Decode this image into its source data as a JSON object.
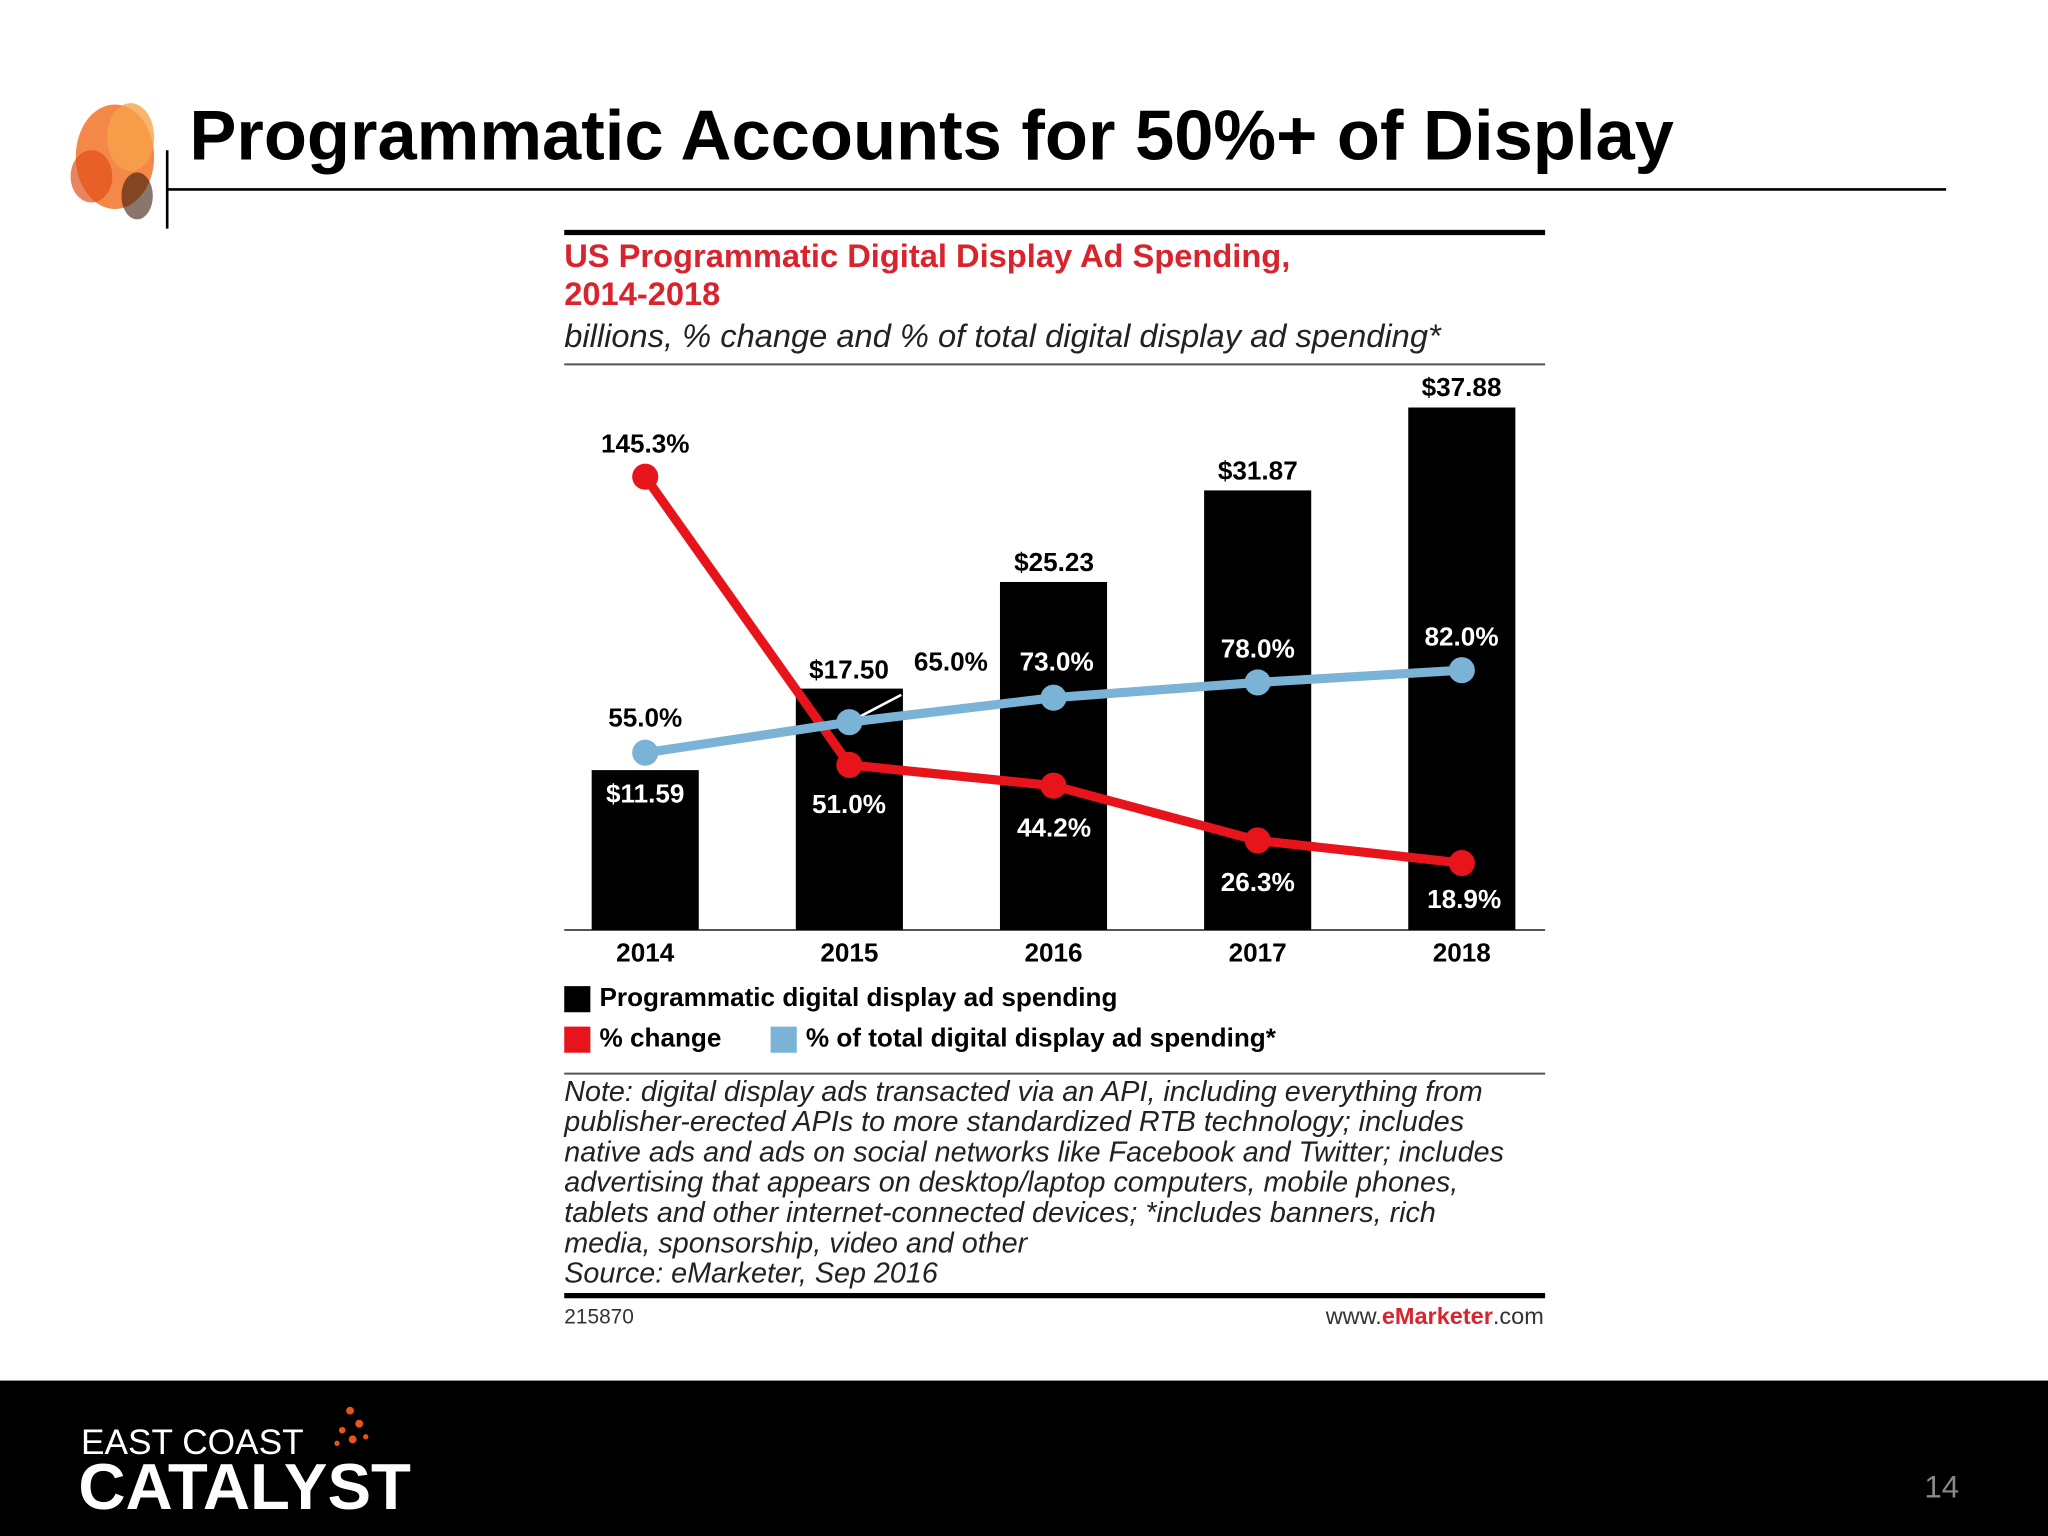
{
  "slide_title": "Programmatic Accounts for 50%+ of Display",
  "chart_data": {
    "type": "bar",
    "title": [
      "US Programmatic Digital Display Ad Spending,",
      "2014-2018"
    ],
    "subtitle": "billions, % change and % of total digital display ad spending*",
    "categories": [
      "2014",
      "2015",
      "2016",
      "2017",
      "2018"
    ],
    "series": [
      {
        "name": "Programmatic digital display ad spending",
        "type": "bar",
        "color": "#000000",
        "values": [
          11.59,
          17.5,
          25.23,
          31.87,
          37.88
        ],
        "value_labels": [
          "$11.59",
          "$17.50",
          "$25.23",
          "$31.87",
          "$37.88"
        ]
      },
      {
        "name": "% change",
        "type": "line",
        "color": "#e8141b",
        "values": [
          145.3,
          51.0,
          44.2,
          26.3,
          18.9
        ],
        "value_labels": [
          "145.3%",
          "51.0%",
          "44.2%",
          "26.3%",
          "18.9%"
        ]
      },
      {
        "name": "% of total digital display ad spending*",
        "type": "line",
        "color": "#7ab3d6",
        "values": [
          55.0,
          65.0,
          73.0,
          78.0,
          82.0
        ],
        "value_labels": [
          "55.0%",
          "65.0%",
          "73.0%",
          "78.0%",
          "82.0%"
        ]
      }
    ],
    "note": [
      "Note: digital display ads transacted via an API, including everything from",
      "publisher-erected APIs to more standardized RTB technology; includes",
      "native ads and ads on social networks like Facebook and Twitter; includes",
      "advertising that appears on desktop/laptop computers, mobile phones,",
      "tablets and other internet-connected devices; *includes banners, rich",
      "media, sponsorship, video and other"
    ],
    "source": "Source: eMarketer, Sep 2016",
    "chart_id": "215870",
    "site": [
      "www.",
      "eMarketer",
      ".com"
    ]
  },
  "footer": {
    "logo": [
      "EAST COAST",
      "CATALYST"
    ],
    "page_number": "14"
  }
}
